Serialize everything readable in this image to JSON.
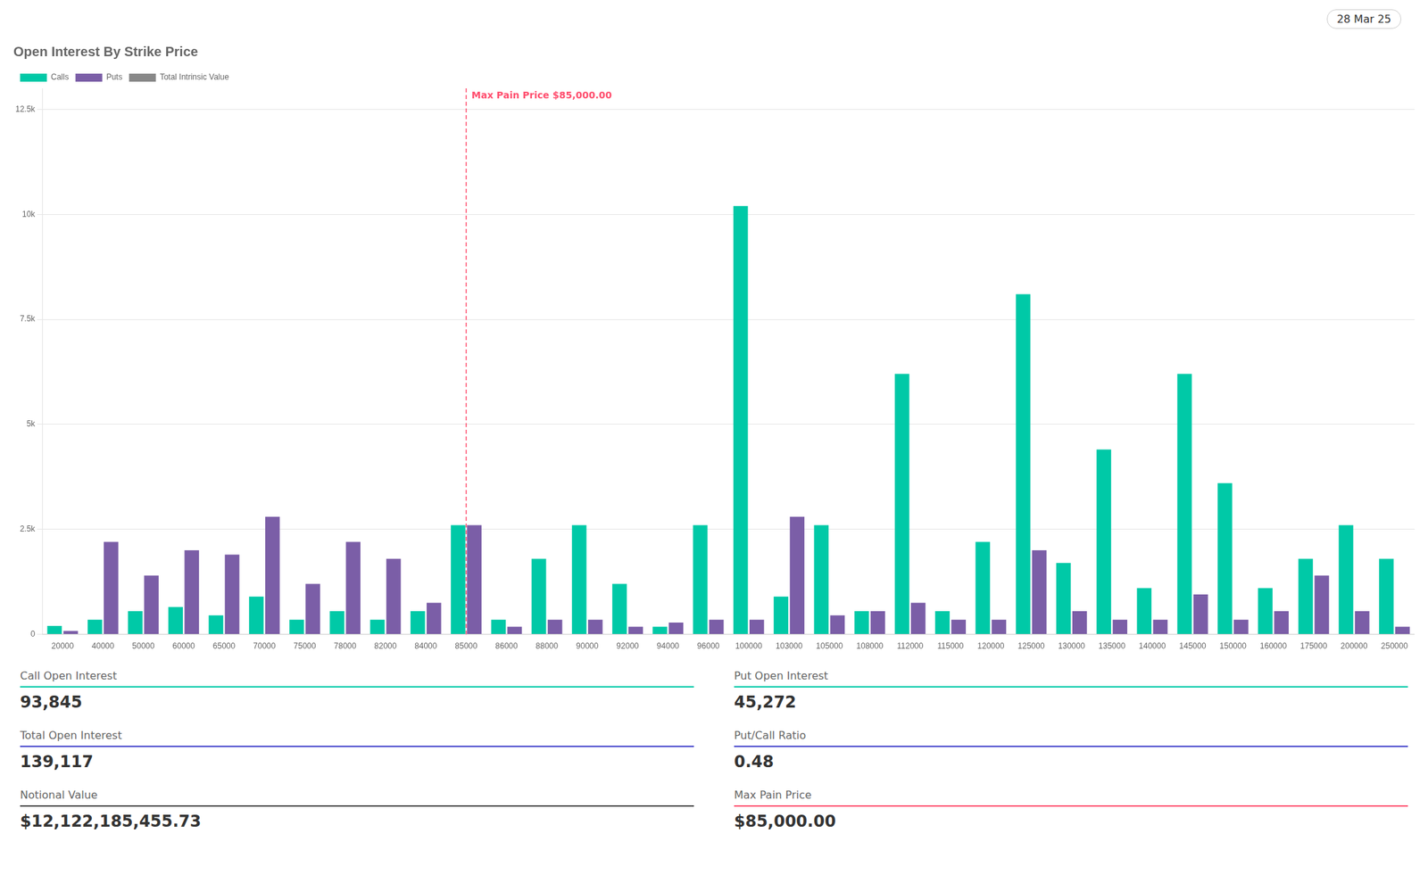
{
  "chart_data": {
    "type": "bar",
    "title": "Open Interest By Strike Price",
    "date_label": "28 Mar 25",
    "categories": [
      "20000",
      "40000",
      "50000",
      "60000",
      "65000",
      "70000",
      "75000",
      "78000",
      "82000",
      "84000",
      "85000",
      "86000",
      "88000",
      "90000",
      "92000",
      "94000",
      "96000",
      "100000",
      "103000",
      "105000",
      "108000",
      "112000",
      "115000",
      "120000",
      "125000",
      "130000",
      "135000",
      "140000",
      "145000",
      "150000",
      "160000",
      "175000",
      "200000",
      "250000"
    ],
    "series": [
      {
        "name": "Calls",
        "color": "#00c9a7",
        "values": [
          200,
          350,
          550,
          650,
          450,
          900,
          350,
          550,
          350,
          550,
          2600,
          350,
          1800,
          2600,
          1200,
          180,
          2600,
          10200,
          900,
          2600,
          550,
          6200,
          550,
          2200,
          8100,
          1700,
          4400,
          1100,
          6200,
          3600,
          1100,
          1800,
          2600,
          1800
        ]
      },
      {
        "name": "Puts",
        "color": "#7b5ea7",
        "values": [
          80,
          2200,
          1400,
          2000,
          1900,
          2800,
          1200,
          2200,
          1800,
          750,
          2600,
          180,
          350,
          350,
          180,
          280,
          350,
          350,
          2800,
          450,
          550,
          750,
          350,
          350,
          2000,
          550,
          350,
          350,
          950,
          350,
          550,
          1400,
          550,
          180
        ]
      }
    ],
    "extra_legend": [
      {
        "name": "Total Intrinsic Value",
        "color": "#888888"
      }
    ],
    "annotations": [
      {
        "text": "Max Pain Price $85,000.00",
        "x": "85000",
        "color": "#ff4d6d",
        "line_style": "dashed"
      }
    ],
    "ylim": [
      0,
      13000
    ],
    "yticks": [
      0,
      {
        "value": 2500,
        "label": "2.5k"
      },
      {
        "value": 5000,
        "label": "5k"
      },
      {
        "value": 7500,
        "label": "7.5k"
      },
      {
        "value": 10000,
        "label": "10k"
      },
      {
        "value": 12500,
        "label": "12.5k"
      }
    ],
    "grid": true,
    "legend": "top",
    "stats": [
      {
        "label": "Call Open Interest",
        "value": "93,845",
        "color": "#00c9a7"
      },
      {
        "label": "Put Open Interest",
        "value": "45,272",
        "color": "#00c9a7"
      },
      {
        "label": "Total Open Interest",
        "value": "139,117",
        "color": "#4444cc"
      },
      {
        "label": "Put/Call Ratio",
        "value": "0.48",
        "color": "#4444cc"
      },
      {
        "label": "Notional Value",
        "value": "$12,122,185,455.73",
        "color": "#444444"
      },
      {
        "label": "Max Pain Price",
        "value": "$85,000.00",
        "color": "#ff4d6d"
      }
    ]
  }
}
